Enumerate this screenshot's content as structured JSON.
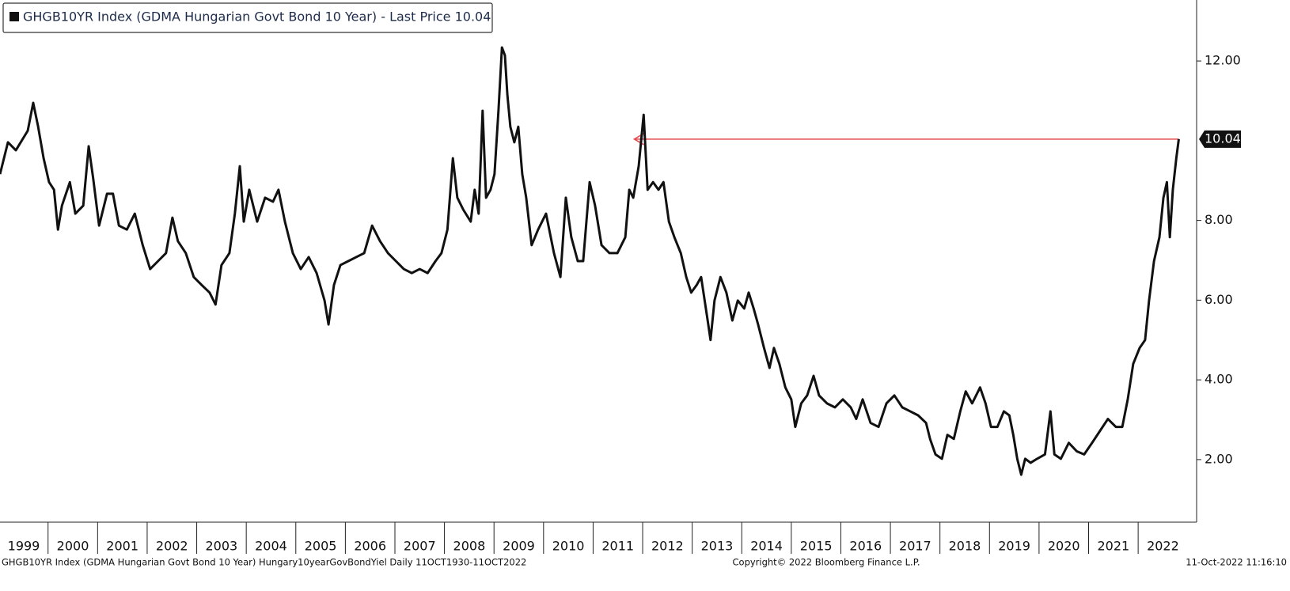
{
  "chart_data": {
    "type": "line",
    "title": "GHGB10YR Index (GDMA Hungarian Govt Bond 10 Year) - Last Price 10.04",
    "footer": {
      "left": "GHGB10YR Index (GDMA Hungarian Govt Bond 10 Year) Hungary10yearGovBondYiel  Daily 11OCT1930-11OCT2022",
      "center": "Copyright© 2022 Bloomberg Finance L.P.",
      "right": "11-Oct-2022 11:16:10"
    },
    "x": [
      1999.03,
      1999.19,
      1999.35,
      1999.59,
      1999.7,
      1999.8,
      1999.91,
      2000.02,
      2000.12,
      2000.2,
      2000.28,
      2000.44,
      2000.55,
      2000.71,
      2000.82,
      2000.91,
      2001.03,
      2001.19,
      2001.31,
      2001.43,
      2001.59,
      2001.75,
      2001.91,
      2002.06,
      2002.22,
      2002.38,
      2002.51,
      2002.62,
      2002.78,
      2002.94,
      2003.1,
      2003.26,
      2003.38,
      2003.5,
      2003.66,
      2003.77,
      2003.87,
      2003.95,
      2004.06,
      2004.22,
      2004.38,
      2004.54,
      2004.65,
      2004.78,
      2004.94,
      2005.1,
      2005.26,
      2005.42,
      2005.58,
      2005.66,
      2005.77,
      2005.9,
      2006.06,
      2006.22,
      2006.38,
      2006.54,
      2006.7,
      2006.86,
      2007.02,
      2007.18,
      2007.34,
      2007.5,
      2007.66,
      2007.82,
      2007.94,
      2008.06,
      2008.17,
      2008.26,
      2008.38,
      2008.53,
      2008.61,
      2008.69,
      2008.77,
      2008.84,
      2008.93,
      2009.01,
      2009.09,
      2009.16,
      2009.22,
      2009.27,
      2009.33,
      2009.41,
      2009.49,
      2009.57,
      2009.65,
      2009.76,
      2009.89,
      2010.05,
      2010.21,
      2010.34,
      2010.45,
      2010.56,
      2010.69,
      2010.8,
      2010.93,
      2011.04,
      2011.17,
      2011.33,
      2011.49,
      2011.65,
      2011.73,
      2011.81,
      2011.92,
      2012.02,
      2012.1,
      2012.21,
      2012.32,
      2012.42,
      2012.53,
      2012.64,
      2012.77,
      2012.88,
      2012.98,
      2013.09,
      2013.18,
      2013.3,
      2013.37,
      2013.45,
      2013.57,
      2013.69,
      2013.81,
      2013.92,
      2014.05,
      2014.14,
      2014.24,
      2014.33,
      2014.45,
      2014.56,
      2014.65,
      2014.76,
      2014.88,
      2015.0,
      2015.08,
      2015.2,
      2015.32,
      2015.45,
      2015.56,
      2015.72,
      2015.88,
      2016.04,
      2016.2,
      2016.31,
      2016.44,
      2016.6,
      2016.76,
      2016.92,
      2017.08,
      2017.24,
      2017.4,
      2017.56,
      2017.72,
      2017.8,
      2017.91,
      2018.04,
      2018.15,
      2018.28,
      2018.41,
      2018.52,
      2018.65,
      2018.81,
      2018.92,
      2019.03,
      2019.16,
      2019.29,
      2019.4,
      2019.48,
      2019.56,
      2019.64,
      2019.72,
      2019.83,
      2019.96,
      2020.12,
      2020.23,
      2020.31,
      2020.44,
      2020.6,
      2020.76,
      2020.91,
      2021.07,
      2021.23,
      2021.39,
      2021.55,
      2021.68,
      2021.79,
      2021.9,
      2022.03,
      2022.14,
      2022.22,
      2022.32,
      2022.43,
      2022.51,
      2022.58,
      2022.64,
      2022.7,
      2022.77,
      2022.82
    ],
    "series": [
      {
        "name": "GHGB10YR Index",
        "color": "#111111",
        "values": [
          9.16,
          9.96,
          9.76,
          10.25,
          10.95,
          10.35,
          9.56,
          8.96,
          8.77,
          7.77,
          8.37,
          8.96,
          8.17,
          8.37,
          9.86,
          9.06,
          7.87,
          8.67,
          8.67,
          7.87,
          7.77,
          8.17,
          7.38,
          6.78,
          6.98,
          7.18,
          8.07,
          7.48,
          7.18,
          6.58,
          6.38,
          6.19,
          5.89,
          6.88,
          7.18,
          8.17,
          9.36,
          7.97,
          8.77,
          7.97,
          8.57,
          8.47,
          8.77,
          7.97,
          7.18,
          6.78,
          7.08,
          6.68,
          5.99,
          5.39,
          6.38,
          6.88,
          6.98,
          7.08,
          7.18,
          7.87,
          7.48,
          7.18,
          6.98,
          6.78,
          6.68,
          6.78,
          6.68,
          6.98,
          7.18,
          7.77,
          9.56,
          8.57,
          8.27,
          7.97,
          8.77,
          8.17,
          10.75,
          8.57,
          8.77,
          9.16,
          10.75,
          12.34,
          12.14,
          11.15,
          10.35,
          9.96,
          10.35,
          9.16,
          8.57,
          7.38,
          7.77,
          8.17,
          7.18,
          6.58,
          8.57,
          7.58,
          6.98,
          6.98,
          8.96,
          8.37,
          7.38,
          7.18,
          7.18,
          7.58,
          8.77,
          8.57,
          9.36,
          10.65,
          8.77,
          8.96,
          8.77,
          8.96,
          7.97,
          7.58,
          7.18,
          6.58,
          6.19,
          6.38,
          6.58,
          5.59,
          5.0,
          5.99,
          6.58,
          6.19,
          5.49,
          5.99,
          5.79,
          6.19,
          5.79,
          5.39,
          4.8,
          4.3,
          4.8,
          4.4,
          3.81,
          3.51,
          2.82,
          3.41,
          3.61,
          4.1,
          3.61,
          3.41,
          3.31,
          3.51,
          3.31,
          3.02,
          3.51,
          2.92,
          2.82,
          3.41,
          3.61,
          3.31,
          3.21,
          3.11,
          2.92,
          2.52,
          2.13,
          2.02,
          2.62,
          2.52,
          3.21,
          3.71,
          3.41,
          3.81,
          3.41,
          2.82,
          2.82,
          3.21,
          3.11,
          2.62,
          2.02,
          1.62,
          2.02,
          1.92,
          2.02,
          2.13,
          3.21,
          2.13,
          2.02,
          2.42,
          2.21,
          2.13,
          2.42,
          2.72,
          3.02,
          2.82,
          2.82,
          3.51,
          4.4,
          4.8,
          5.0,
          5.99,
          6.98,
          7.58,
          8.57,
          8.96,
          7.58,
          8.77,
          9.56,
          10.04
        ]
      }
    ],
    "last_price": 10.04,
    "reference_line": {
      "value": 10.04,
      "x_start": 2011.83,
      "color": "#e8474c"
    },
    "xlim": [
      1999.03,
      2023.18
    ],
    "xticks": [
      1999,
      2000,
      2001,
      2002,
      2003,
      2004,
      2005,
      2006,
      2007,
      2008,
      2009,
      2010,
      2011,
      2012,
      2013,
      2014,
      2015,
      2016,
      2017,
      2018,
      2019,
      2020,
      2021,
      2022
    ],
    "ylim": [
      0.43,
      13.53
    ],
    "yticks": [
      {
        "value": 2,
        "label": "2.00"
      },
      {
        "value": 4,
        "label": "4.00"
      },
      {
        "value": 6,
        "label": "6.00"
      },
      {
        "value": 8,
        "label": "8.00"
      },
      {
        "value": 12,
        "label": "12.00"
      }
    ],
    "grid": false
  }
}
